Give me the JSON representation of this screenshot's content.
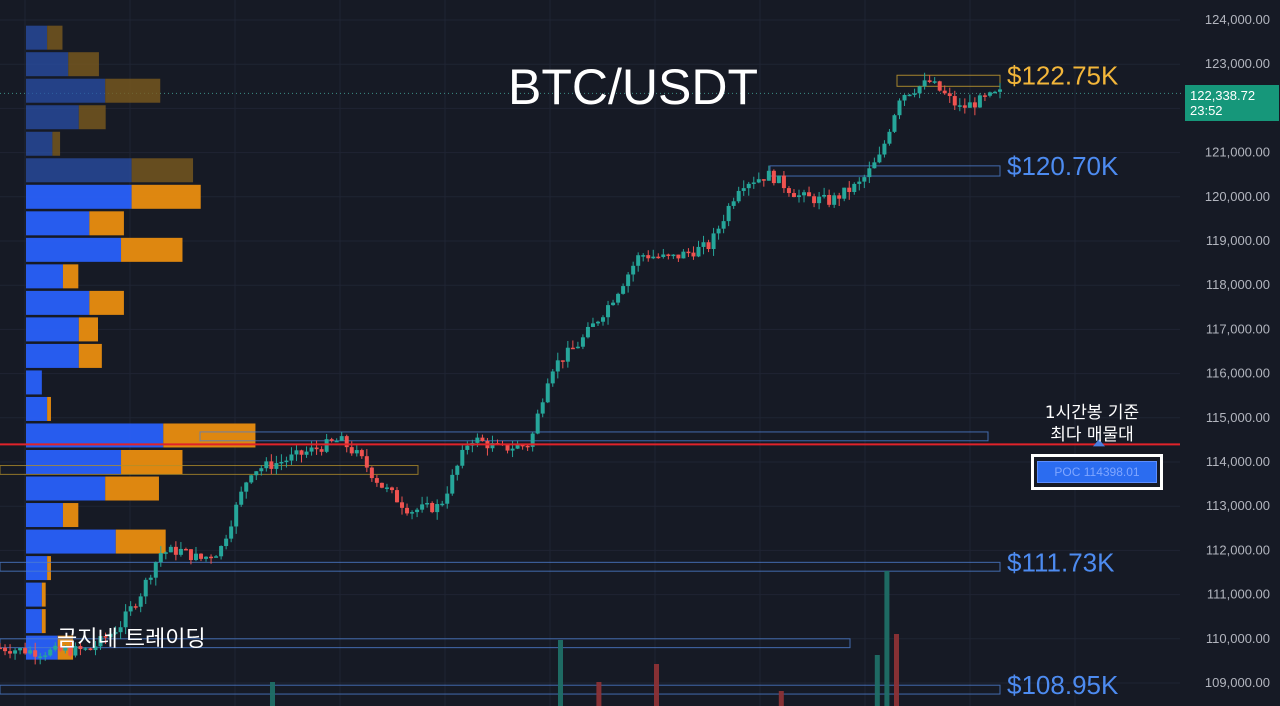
{
  "title": "BTC/USDT",
  "watermark": "곰지네 트레이딩",
  "poc_note_line1": "1시간봉 기준",
  "poc_note_line2": "최다 매물대",
  "poc_label": "POC  114398.01",
  "current_price": "122,338.72",
  "countdown": "23:52",
  "colors": {
    "background": "#161a25",
    "up": "#26a69a",
    "down": "#ef5350",
    "volume_up": "#2962ff",
    "volume_down": "#f0900e",
    "label_gold": "#f3b63a",
    "label_blue": "#4d8bf0",
    "poc_line": "#e0232a",
    "price_tag": "#16977a"
  },
  "chart_data": {
    "type": "candlestick",
    "title": "BTC/USDT",
    "y_axis": {
      "min": 108700,
      "max": 124400,
      "ticks": [
        124000,
        123000,
        122000,
        121000,
        120000,
        119000,
        118000,
        117000,
        116000,
        115000,
        114000,
        113000,
        112000,
        111000,
        110000,
        109000
      ],
      "tick_labels": [
        "124,000.00",
        "123,000.00",
        "122,000.00",
        "121,000.00",
        "120,000.00",
        "119,000.00",
        "118,000.00",
        "117,000.00",
        "116,000.00",
        "115,000.00",
        "114,000.00",
        "113,000.00",
        "112,000.00",
        "111,000.00",
        "110,000.00",
        "109,000.00"
      ],
      "position": "right"
    },
    "grid": true,
    "last_price": 122338.72,
    "poc": 114398.01,
    "levels": [
      {
        "value": 122750,
        "label": "$122.75K",
        "color": "gold"
      },
      {
        "value": 120700,
        "label": "$120.70K",
        "color": "blue"
      },
      {
        "value": 111730,
        "label": "$111.73K",
        "color": "blue"
      },
      {
        "value": 108950,
        "label": "$108.95K",
        "color": "blue"
      }
    ],
    "volume_profile": [
      {
        "price": 123600,
        "buy": 0.12,
        "sell": 0.12
      },
      {
        "price": 123000,
        "buy": 0.24,
        "sell": 0.24
      },
      {
        "price": 122400,
        "buy": 0.45,
        "sell": 0.43
      },
      {
        "price": 121800,
        "buy": 0.3,
        "sell": 0.21
      },
      {
        "price": 121200,
        "buy": 0.15,
        "sell": 0.06
      },
      {
        "price": 120600,
        "buy": 0.6,
        "sell": 0.48
      },
      {
        "price": 120000,
        "buy": 0.6,
        "sell": 0.54
      },
      {
        "price": 119400,
        "buy": 0.36,
        "sell": 0.27
      },
      {
        "price": 118800,
        "buy": 0.54,
        "sell": 0.48
      },
      {
        "price": 118200,
        "buy": 0.21,
        "sell": 0.12
      },
      {
        "price": 117600,
        "buy": 0.36,
        "sell": 0.27
      },
      {
        "price": 117000,
        "buy": 0.3,
        "sell": 0.15
      },
      {
        "price": 116400,
        "buy": 0.3,
        "sell": 0.18
      },
      {
        "price": 115800,
        "buy": 0.09,
        "sell": 0.0
      },
      {
        "price": 115200,
        "buy": 0.12,
        "sell": 0.03
      },
      {
        "price": 114600,
        "buy": 0.78,
        "sell": 0.72
      },
      {
        "price": 114000,
        "buy": 0.54,
        "sell": 0.48
      },
      {
        "price": 113400,
        "buy": 0.45,
        "sell": 0.42
      },
      {
        "price": 112800,
        "buy": 0.21,
        "sell": 0.12
      },
      {
        "price": 112200,
        "buy": 0.51,
        "sell": 0.39
      },
      {
        "price": 111600,
        "buy": 0.12,
        "sell": 0.03
      },
      {
        "price": 111000,
        "buy": 0.09,
        "sell": 0.03
      },
      {
        "price": 110400,
        "buy": 0.09,
        "sell": 0.03
      },
      {
        "price": 109800,
        "buy": 0.18,
        "sell": 0.12
      }
    ],
    "candles_path": [
      [
        0.0,
        109800
      ],
      [
        0.04,
        109700
      ],
      [
        0.09,
        109750
      ],
      [
        0.12,
        110300
      ],
      [
        0.14,
        111000
      ],
      [
        0.16,
        111950
      ],
      [
        0.18,
        112000
      ],
      [
        0.2,
        111800
      ],
      [
        0.22,
        112000
      ],
      [
        0.25,
        113800
      ],
      [
        0.28,
        114000
      ],
      [
        0.31,
        114250
      ],
      [
        0.34,
        114500
      ],
      [
        0.36,
        114100
      ],
      [
        0.38,
        113500
      ],
      [
        0.41,
        112900
      ],
      [
        0.44,
        113000
      ],
      [
        0.47,
        114550
      ],
      [
        0.5,
        114300
      ],
      [
        0.53,
        114400
      ],
      [
        0.55,
        116100
      ],
      [
        0.58,
        116700
      ],
      [
        0.61,
        117600
      ],
      [
        0.64,
        118700
      ],
      [
        0.67,
        118600
      ],
      [
        0.71,
        118900
      ],
      [
        0.74,
        120300
      ],
      [
        0.77,
        120500
      ],
      [
        0.8,
        120000
      ],
      [
        0.83,
        119900
      ],
      [
        0.86,
        120300
      ],
      [
        0.88,
        120900
      ],
      [
        0.9,
        122300
      ],
      [
        0.93,
        122600
      ],
      [
        0.96,
        122000
      ],
      [
        1.0,
        122340
      ]
    ],
    "volume_spikes": [
      {
        "x": 0.25,
        "up": true,
        "h": 0.08
      },
      {
        "x": 0.55,
        "up": true,
        "h": 0.22
      },
      {
        "x": 0.59,
        "up": false,
        "h": 0.08
      },
      {
        "x": 0.65,
        "up": false,
        "h": 0.14
      },
      {
        "x": 0.78,
        "up": false,
        "h": 0.05
      },
      {
        "x": 0.89,
        "up": true,
        "h": 0.45
      },
      {
        "x": 0.9,
        "up": false,
        "h": 0.24
      },
      {
        "x": 0.88,
        "up": true,
        "h": 0.17
      }
    ]
  }
}
